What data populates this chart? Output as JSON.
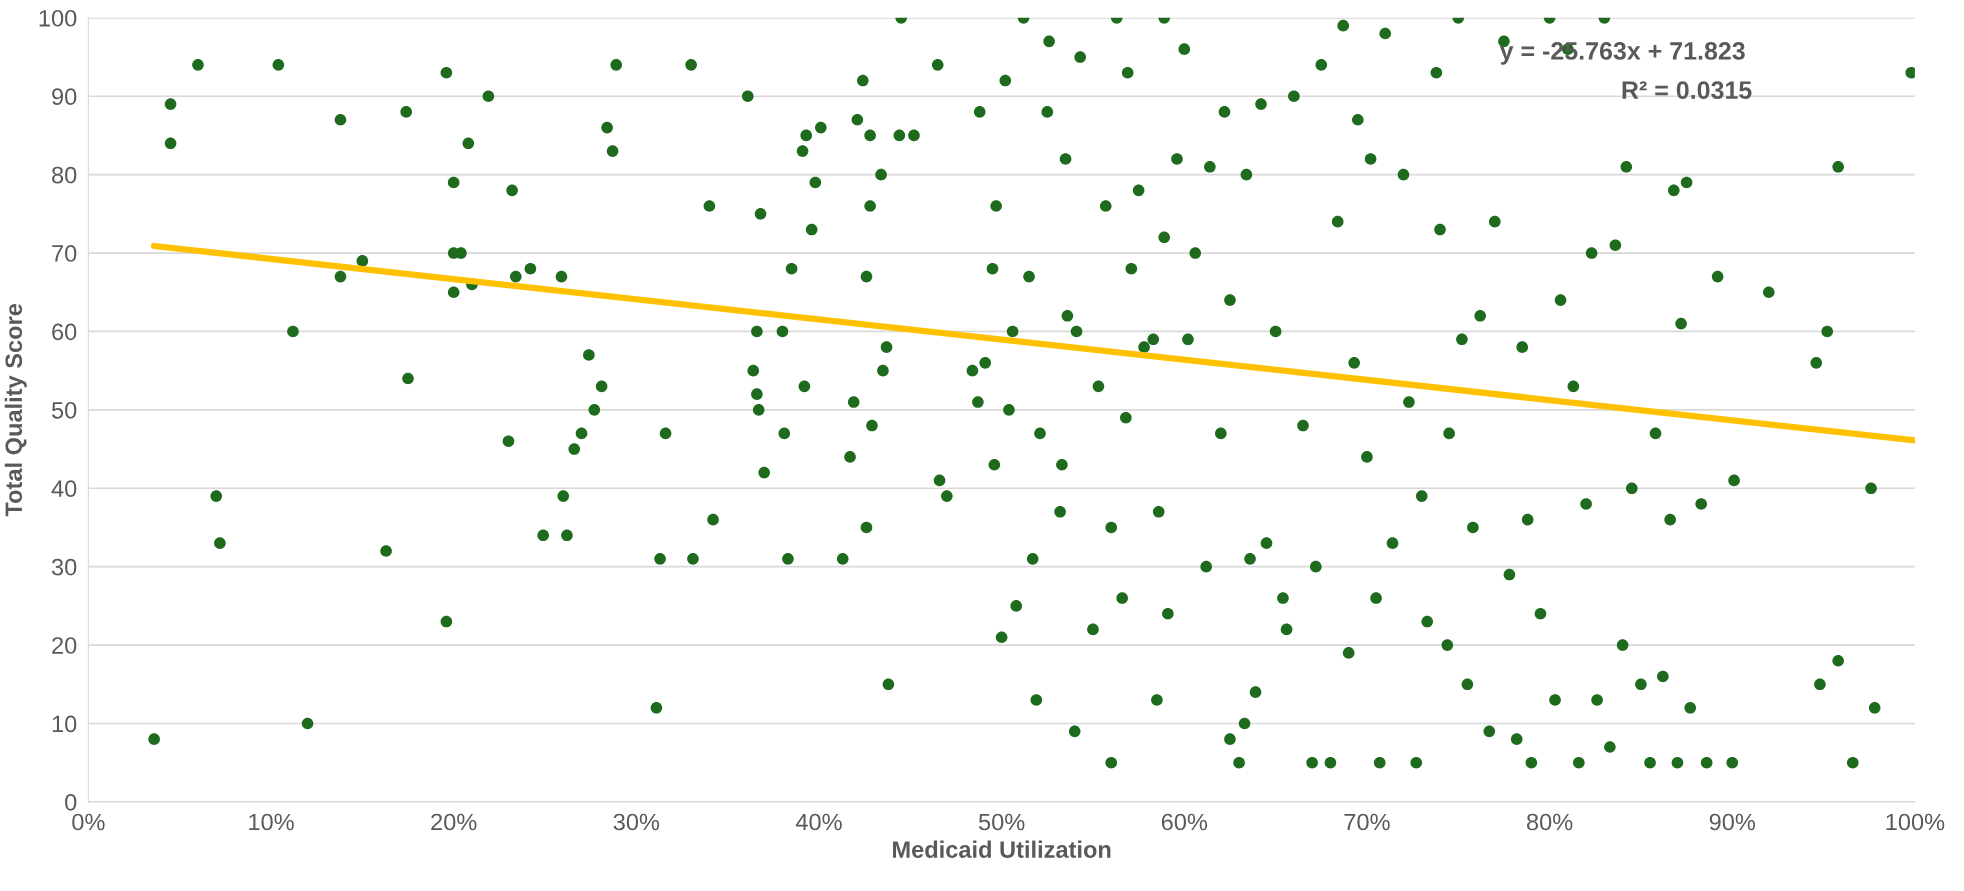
{
  "chart_data": {
    "type": "scatter",
    "xlabel": "Medicaid Utilization",
    "ylabel": "Total Quality Score",
    "xlim": [
      0,
      1
    ],
    "ylim": [
      0,
      100
    ],
    "xticks": [
      {
        "value": 0,
        "label": "0%"
      },
      {
        "value": 0.1,
        "label": "10%"
      },
      {
        "value": 0.2,
        "label": "20%"
      },
      {
        "value": 0.3,
        "label": "30%"
      },
      {
        "value": 0.4,
        "label": "40%"
      },
      {
        "value": 0.5,
        "label": "50%"
      },
      {
        "value": 0.6,
        "label": "60%"
      },
      {
        "value": 0.7,
        "label": "70%"
      },
      {
        "value": 0.8,
        "label": "80%"
      },
      {
        "value": 0.9,
        "label": "90%"
      },
      {
        "value": 1,
        "label": "100%"
      }
    ],
    "yticks": [
      0,
      10,
      20,
      30,
      40,
      50,
      60,
      70,
      80,
      90,
      100
    ],
    "grid": "y",
    "annotations": [
      "y = -25.763x + 71.823",
      "R² = 0.0315"
    ],
    "series": [
      {
        "marker": "circle",
        "color": "#1e6b1e",
        "x": [
          0.036,
          0.045,
          0.045,
          0.06,
          0.07,
          0.072,
          0.104,
          0.112,
          0.12,
          0.138,
          0.138,
          0.15,
          0.163,
          0.174,
          0.175,
          0.196,
          0.196,
          0.2,
          0.2,
          0.2,
          0.204,
          0.208,
          0.21,
          0.219,
          0.23,
          0.232,
          0.234,
          0.242,
          0.249,
          0.259,
          0.26,
          0.262,
          0.266,
          0.27,
          0.274,
          0.277,
          0.281,
          0.284,
          0.287,
          0.289,
          0.311,
          0.313,
          0.316,
          0.33,
          0.331,
          0.34,
          0.342,
          0.361,
          0.364,
          0.366,
          0.366,
          0.367,
          0.368,
          0.37,
          0.38,
          0.381,
          0.383,
          0.385,
          0.391,
          0.392,
          0.393,
          0.396,
          0.398,
          0.401,
          0.413,
          0.417,
          0.419,
          0.421,
          0.424,
          0.426,
          0.426,
          0.428,
          0.428,
          0.429,
          0.434,
          0.435,
          0.437,
          0.438,
          0.444,
          0.445,
          0.452,
          0.465,
          0.466,
          0.47,
          0.484,
          0.487,
          0.488,
          0.491,
          0.495,
          0.496,
          0.497,
          0.5,
          0.502,
          0.504,
          0.506,
          0.508,
          0.512,
          0.515,
          0.517,
          0.519,
          0.521,
          0.525,
          0.526,
          0.532,
          0.533,
          0.535,
          0.536,
          0.54,
          0.541,
          0.543,
          0.55,
          0.553,
          0.557,
          0.56,
          0.56,
          0.563,
          0.566,
          0.568,
          0.569,
          0.571,
          0.575,
          0.578,
          0.583,
          0.585,
          0.586,
          0.589,
          0.589,
          0.591,
          0.596,
          0.6,
          0.602,
          0.606,
          0.612,
          0.614,
          0.62,
          0.622,
          0.625,
          0.625,
          0.63,
          0.633,
          0.634,
          0.636,
          0.639,
          0.642,
          0.645,
          0.65,
          0.654,
          0.656,
          0.66,
          0.665,
          0.67,
          0.672,
          0.675,
          0.68,
          0.684,
          0.687,
          0.69,
          0.693,
          0.695,
          0.7,
          0.702,
          0.705,
          0.707,
          0.71,
          0.714,
          0.72,
          0.723,
          0.727,
          0.73,
          0.733,
          0.738,
          0.74,
          0.744,
          0.745,
          0.75,
          0.752,
          0.755,
          0.758,
          0.762,
          0.767,
          0.77,
          0.775,
          0.778,
          0.782,
          0.785,
          0.788,
          0.79,
          0.795,
          0.8,
          0.803,
          0.806,
          0.81,
          0.813,
          0.816,
          0.82,
          0.823,
          0.826,
          0.83,
          0.833,
          0.836,
          0.84,
          0.842,
          0.845,
          0.85,
          0.855,
          0.858,
          0.862,
          0.866,
          0.868,
          0.87,
          0.872,
          0.875,
          0.877,
          0.883,
          0.886,
          0.892,
          0.9,
          0.901,
          0.92,
          0.946,
          0.948,
          0.952,
          0.958,
          0.958,
          0.966,
          0.976,
          0.978,
          0.998
        ],
        "values": [
          8,
          89,
          84,
          94,
          39,
          33,
          94,
          60,
          10,
          87,
          67,
          69,
          32,
          88,
          54,
          93,
          23,
          79,
          70,
          65,
          70,
          84,
          66,
          90,
          46,
          78,
          67,
          68,
          34,
          67,
          39,
          34,
          45,
          47,
          57,
          50,
          53,
          86,
          83,
          94,
          12,
          31,
          47,
          94,
          31,
          76,
          36,
          90,
          55,
          60,
          52,
          50,
          75,
          42,
          60,
          47,
          31,
          68,
          83,
          53,
          85,
          73,
          79,
          86,
          31,
          44,
          51,
          87,
          92,
          67,
          35,
          76,
          85,
          48,
          80,
          55,
          58,
          15,
          85,
          100,
          85,
          94,
          41,
          39,
          55,
          51,
          88,
          56,
          68,
          43,
          76,
          21,
          92,
          50,
          60,
          25,
          100,
          67,
          31,
          13,
          47,
          88,
          97,
          37,
          43,
          82,
          62,
          9,
          60,
          95,
          22,
          53,
          76,
          5,
          35,
          100,
          26,
          49,
          93,
          68,
          78,
          58,
          59,
          13,
          37,
          100,
          72,
          24,
          82,
          96,
          59,
          70,
          30,
          81,
          47,
          88,
          64,
          8,
          5,
          10,
          80,
          31,
          14,
          89,
          33,
          60,
          26,
          22,
          90,
          48,
          5,
          30,
          94,
          5,
          74,
          99,
          19,
          56,
          87,
          44,
          82,
          26,
          5,
          98,
          33,
          80,
          51,
          5,
          39,
          23,
          93,
          73,
          20,
          47,
          100,
          59,
          15,
          35,
          62,
          9,
          74,
          97,
          29,
          8,
          58,
          36,
          5,
          24,
          100,
          13,
          64,
          96,
          53,
          5,
          38,
          70,
          13,
          100,
          7,
          71,
          20,
          81,
          40,
          15,
          5,
          47,
          16,
          36,
          78,
          5,
          61,
          79,
          12,
          38,
          5,
          67,
          5,
          41,
          65,
          56,
          15,
          60,
          81,
          18,
          5,
          40,
          12,
          93
        ]
      },
      {
        "type": "line",
        "marker": "none",
        "color": "#ffc000",
        "x": [
          0.036,
          1.0
        ],
        "values": [
          70.9,
          46.1
        ]
      }
    ]
  }
}
